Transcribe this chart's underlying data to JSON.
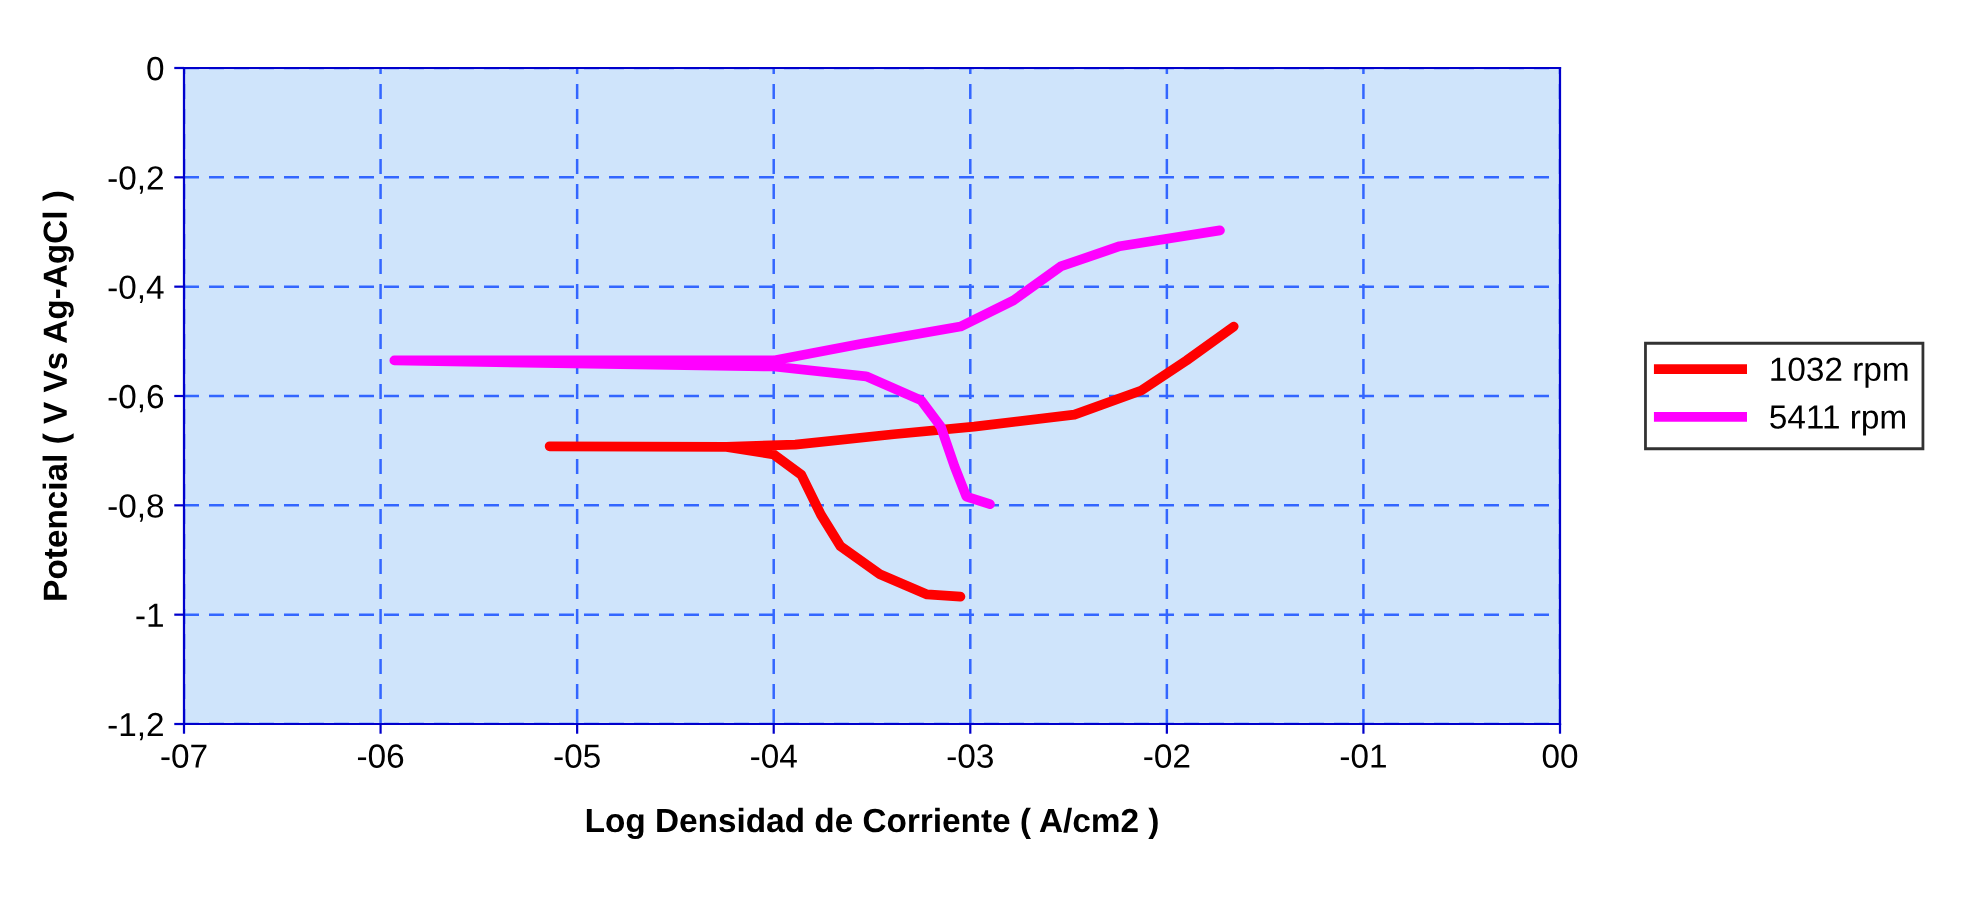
{
  "chart_data": {
    "type": "line",
    "xlabel": "Log Densidad de Corriente ( A/cm2 )",
    "ylabel": "Potencial ( V Vs Ag-AgCl )",
    "xlim": [
      -7,
      0
    ],
    "ylim": [
      -1.2,
      0
    ],
    "xticks": [
      {
        "value": -7,
        "label": "-07"
      },
      {
        "value": -6,
        "label": "-06"
      },
      {
        "value": -5,
        "label": "-05"
      },
      {
        "value": -4,
        "label": "-04"
      },
      {
        "value": -3,
        "label": "-03"
      },
      {
        "value": -2,
        "label": "-02"
      },
      {
        "value": -1,
        "label": "-01"
      },
      {
        "value": 0,
        "label": "00"
      }
    ],
    "yticks": [
      0,
      {
        "value": -0.2,
        "label": "-0,2"
      },
      {
        "value": -0.4,
        "label": "-0,4"
      },
      {
        "value": -0.6,
        "label": "-0,6"
      },
      {
        "value": -0.8,
        "label": "-0,8"
      },
      -1,
      {
        "value": -1.2,
        "label": "-1,2"
      }
    ],
    "grid": true,
    "legend": "right",
    "marker": "none",
    "line_style": "solid",
    "series": [
      {
        "name": "1032 rpm",
        "color": "#ff0000",
        "x": [
          -3.05,
          -3.22,
          -3.46,
          -3.66,
          -3.76,
          -3.86,
          -4.0,
          -4.24,
          -5.14,
          -4.24,
          -3.89,
          -3.39,
          -2.98,
          -2.47,
          -2.13,
          -1.9,
          -1.66
        ],
        "values": [
          -0.967,
          -0.963,
          -0.926,
          -0.875,
          -0.817,
          -0.744,
          -0.707,
          -0.693,
          -0.692,
          -0.693,
          -0.689,
          -0.67,
          -0.656,
          -0.634,
          -0.59,
          -0.535,
          -0.473
        ]
      },
      {
        "name": "5411 rpm",
        "color": "#ff00ff",
        "x": [
          -2.9,
          -3.02,
          -3.08,
          -3.15,
          -3.25,
          -3.53,
          -4.0,
          -5.93,
          -4.0,
          -3.56,
          -3.05,
          -2.78,
          -2.54,
          -2.24,
          -1.73
        ],
        "values": [
          -0.798,
          -0.784,
          -0.729,
          -0.656,
          -0.608,
          -0.564,
          -0.546,
          -0.535,
          -0.535,
          -0.505,
          -0.473,
          -0.425,
          -0.363,
          -0.326,
          -0.297
        ]
      }
    ]
  }
}
